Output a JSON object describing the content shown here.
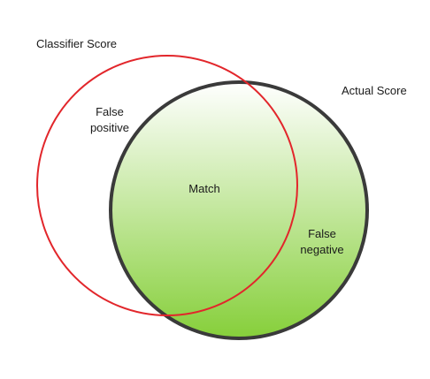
{
  "diagram": {
    "sets": [
      {
        "name": "Classifier Score",
        "stroke": "#e2262b",
        "fill": "none"
      },
      {
        "name": "Actual Score",
        "stroke": "#3a3a3a",
        "fill_top": "#ffffff",
        "fill_bottom": "#86cf3a"
      }
    ],
    "regions": {
      "false_positive": {
        "line1": "False",
        "line2": "positive"
      },
      "match": "Match",
      "false_negative": {
        "line1": "False",
        "line2": "negative"
      }
    }
  }
}
